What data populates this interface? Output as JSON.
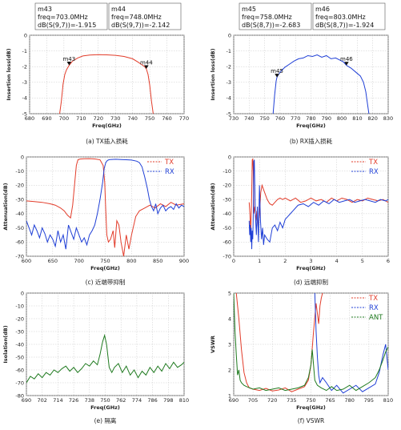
{
  "chart_data": [
    {
      "id": "a",
      "type": "line",
      "caption": "(a) TX插入损耗",
      "xlabel": "Freq(GHz)",
      "ylabel": "Insertion loss(dB)",
      "xlim": [
        680,
        770
      ],
      "ylim": [
        -5,
        0
      ],
      "xticks": [
        680,
        690,
        700,
        710,
        720,
        730,
        740,
        750,
        760,
        770
      ],
      "yticks": [
        0,
        -1,
        -2,
        -3,
        -4,
        -5
      ],
      "grid": true,
      "markers_box": [
        {
          "lines": [
            "m43",
            "freq=703.0MHz",
            "dB(S(9,7))=-1.915"
          ]
        },
        {
          "lines": [
            "m44",
            "freq=748.0MHz",
            "dB(S(9,7))=-2.142"
          ]
        }
      ],
      "markers": [
        {
          "name": "m43",
          "x": 703,
          "y": -1.915
        },
        {
          "name": "m44",
          "x": 748,
          "y": -2.142
        }
      ],
      "series": [
        {
          "color": "#e23c2a",
          "x": [
            697.5,
            698.5,
            699.5,
            700.5,
            701.5,
            703,
            705,
            708,
            711,
            715,
            720,
            725,
            730,
            735,
            740,
            743,
            745,
            747,
            748,
            749,
            750,
            751,
            752
          ],
          "y": [
            -5,
            -4.2,
            -3.1,
            -2.5,
            -2.2,
            -1.92,
            -1.65,
            -1.45,
            -1.32,
            -1.26,
            -1.24,
            -1.25,
            -1.28,
            -1.35,
            -1.5,
            -1.7,
            -1.85,
            -2.0,
            -2.14,
            -2.5,
            -3.2,
            -4.2,
            -5
          ]
        }
      ]
    },
    {
      "id": "b",
      "type": "line",
      "caption": "(b) RX插入损耗",
      "xlabel": "Freq(GHz)",
      "ylabel": "Insertion loss(dB)",
      "xlim": [
        730,
        830
      ],
      "ylim": [
        -5,
        0
      ],
      "xticks": [
        730,
        740,
        750,
        760,
        770,
        780,
        790,
        800,
        810,
        820,
        830
      ],
      "yticks": [
        0,
        -1,
        -2,
        -3,
        -4,
        -5
      ],
      "grid": true,
      "markers_box": [
        {
          "lines": [
            "m45",
            "freq=758.0MHz",
            "dB(S(8,7))=-2.683"
          ]
        },
        {
          "lines": [
            "m46",
            "freq=803.0MHz",
            "dB(S(8,7))=-1.924"
          ]
        }
      ],
      "markers": [
        {
          "name": "m45",
          "x": 758,
          "y": -2.683
        },
        {
          "name": "m46",
          "x": 803,
          "y": -1.924
        }
      ],
      "series": [
        {
          "color": "#1f3fd6",
          "x": [
            755.5,
            756.5,
            757.5,
            758,
            759,
            761,
            763,
            766,
            769,
            772,
            775,
            778,
            781,
            784,
            787,
            790,
            793,
            796,
            799,
            801,
            803,
            806,
            809,
            812,
            814,
            815.5,
            816.5,
            817.5
          ],
          "y": [
            -5,
            -3.8,
            -2.9,
            -2.68,
            -2.5,
            -2.25,
            -2.05,
            -1.85,
            -1.65,
            -1.5,
            -1.45,
            -1.3,
            -1.35,
            -1.25,
            -1.4,
            -1.3,
            -1.5,
            -1.45,
            -1.6,
            -1.7,
            -1.92,
            -2.1,
            -2.35,
            -2.6,
            -3.0,
            -3.6,
            -4.3,
            -5
          ]
        }
      ]
    },
    {
      "id": "c",
      "type": "line",
      "caption": "(c) 近端带抑制",
      "xlabel": "Freq(GHz)",
      "ylabel": "Attenuation(dB)",
      "xlim": [
        600,
        900
      ],
      "ylim": [
        -70,
        0
      ],
      "xticks": [
        600,
        650,
        700,
        750,
        800,
        850,
        900
      ],
      "yticks": [
        0,
        -10,
        -20,
        -30,
        -40,
        -50,
        -60,
        -70
      ],
      "grid": true,
      "legend": [
        {
          "name": "TX",
          "color": "#e23c2a"
        },
        {
          "name": "RX",
          "color": "#1f3fd6"
        }
      ],
      "legend_position": "top-right",
      "series": [
        {
          "name": "TX",
          "color": "#e23c2a",
          "x": [
            600,
            615,
            630,
            645,
            655,
            665,
            672,
            678,
            684,
            688,
            692,
            695,
            698,
            702,
            710,
            720,
            730,
            740,
            746,
            749,
            751,
            753,
            756,
            760,
            765,
            768,
            772,
            776,
            780,
            785,
            790,
            795,
            800,
            808,
            815,
            825,
            835,
            845,
            855,
            865,
            875,
            885,
            900
          ],
          "y": [
            -31,
            -31.5,
            -32,
            -33,
            -34,
            -36,
            -38,
            -41,
            -43,
            -34,
            -18,
            -6,
            -2,
            -1.5,
            -1.3,
            -1.2,
            -1.4,
            -2,
            -6,
            -18,
            -38,
            -55,
            -60,
            -58,
            -52,
            -64,
            -45,
            -48,
            -60,
            -70,
            -55,
            -65,
            -55,
            -42,
            -38,
            -36,
            -34,
            -36,
            -33,
            -35,
            -32,
            -34,
            -33
          ]
        },
        {
          "name": "RX",
          "color": "#1f3fd6",
          "x": [
            600,
            605,
            610,
            615,
            620,
            625,
            630,
            635,
            640,
            645,
            650,
            655,
            660,
            665,
            670,
            675,
            680,
            685,
            690,
            695,
            700,
            705,
            710,
            715,
            720,
            725,
            730,
            735,
            740,
            745,
            748,
            751,
            754,
            757,
            760,
            770,
            780,
            790,
            800,
            810,
            815,
            820,
            825,
            830,
            834,
            838,
            842,
            846,
            850,
            855,
            860,
            865,
            870,
            875,
            880,
            885,
            890,
            895,
            900
          ],
          "y": [
            -45,
            -50,
            -55,
            -48,
            -52,
            -57,
            -50,
            -54,
            -60,
            -55,
            -58,
            -63,
            -52,
            -60,
            -55,
            -65,
            -48,
            -53,
            -58,
            -50,
            -55,
            -60,
            -57,
            -62,
            -55,
            -52,
            -48,
            -40,
            -30,
            -18,
            -8,
            -4,
            -2.5,
            -2,
            -1.8,
            -1.6,
            -1.8,
            -2,
            -2.2,
            -3,
            -4,
            -7,
            -14,
            -22,
            -30,
            -35,
            -38,
            -33,
            -40,
            -36,
            -34,
            -38,
            -36,
            -35,
            -37,
            -33,
            -36,
            -34,
            -35
          ]
        }
      ]
    },
    {
      "id": "d",
      "type": "line",
      "caption": "(d) 远端抑制",
      "xlabel": "Freq(GHz)",
      "ylabel": "Attenuation(dB)",
      "xlim": [
        0,
        6
      ],
      "ylim": [
        -70,
        0
      ],
      "xticks": [
        0,
        1,
        2,
        3,
        4,
        5,
        6
      ],
      "yticks": [
        0,
        -10,
        -20,
        -30,
        -40,
        -50,
        -60,
        -70
      ],
      "grid": true,
      "legend": [
        {
          "name": "TX",
          "color": "#e23c2a"
        },
        {
          "name": "RX",
          "color": "#1f3fd6"
        }
      ],
      "legend_position": "top-right",
      "series": [
        {
          "name": "TX",
          "color": "#e23c2a",
          "x": [
            0.6,
            0.63,
            0.66,
            0.7,
            0.72,
            0.74,
            0.76,
            0.78,
            0.82,
            0.86,
            0.9,
            0.95,
            1.0,
            1.05,
            1.1,
            1.2,
            1.3,
            1.4,
            1.5,
            1.6,
            1.7,
            1.8,
            1.9,
            2.0,
            2.2,
            2.4,
            2.6,
            2.8,
            3.0,
            3.2,
            3.4,
            3.6,
            3.8,
            4.0,
            4.2,
            4.4,
            4.6,
            4.8,
            5.0,
            5.2,
            5.4,
            5.6,
            5.8,
            6.0
          ],
          "y": [
            -32,
            -40,
            -55,
            -25,
            -2,
            -1.5,
            -10,
            -40,
            -35,
            -45,
            -38,
            -50,
            -40,
            -25,
            -20,
            -25,
            -30,
            -33,
            -34,
            -32,
            -30,
            -29,
            -30,
            -29,
            -31,
            -29,
            -32,
            -31,
            -29,
            -31,
            -30,
            -32,
            -29,
            -31,
            -29,
            -30,
            -32,
            -30,
            -31,
            -29,
            -30,
            -31,
            -30,
            -32
          ]
        },
        {
          "name": "RX",
          "color": "#1f3fd6",
          "x": [
            0.6,
            0.62,
            0.64,
            0.66,
            0.68,
            0.7,
            0.72,
            0.74,
            0.76,
            0.78,
            0.8,
            0.84,
            0.88,
            0.92,
            0.96,
            1.0,
            1.04,
            1.08,
            1.12,
            1.16,
            1.2,
            1.3,
            1.4,
            1.5,
            1.6,
            1.7,
            1.8,
            1.9,
            2.0,
            2.1,
            2.2,
            2.3,
            2.4,
            2.5,
            2.7,
            2.9,
            3.1,
            3.3,
            3.5,
            3.7,
            3.9,
            4.1,
            4.3,
            4.5,
            4.7,
            4.9,
            5.1,
            5.3,
            5.5,
            5.7,
            5.9,
            6.0
          ],
          "y": [
            -45,
            -55,
            -48,
            -60,
            -50,
            -65,
            -52,
            -58,
            -40,
            -3,
            -2,
            -40,
            -55,
            -35,
            -60,
            -20,
            -45,
            -58,
            -50,
            -62,
            -55,
            -58,
            -60,
            -50,
            -48,
            -52,
            -46,
            -50,
            -44,
            -42,
            -40,
            -38,
            -36,
            -34,
            -33,
            -35,
            -32,
            -34,
            -31,
            -33,
            -30,
            -32,
            -31,
            -30,
            -32,
            -31,
            -30,
            -31,
            -32,
            -30,
            -31,
            -30
          ]
        }
      ]
    },
    {
      "id": "e",
      "type": "line",
      "caption": "(e) 隔离",
      "xlabel": "Freq(GHz)",
      "ylabel": "Isolation(dB)",
      "xlim": [
        690,
        810
      ],
      "ylim": [
        -80,
        0
      ],
      "xticks": [
        690,
        702,
        714,
        726,
        738,
        750,
        762,
        774,
        786,
        798,
        810
      ],
      "yticks": [
        0,
        -10,
        -20,
        -30,
        -40,
        -50,
        -60,
        -70,
        -80
      ],
      "grid": true,
      "series": [
        {
          "color": "#1f7a1f",
          "x": [
            690,
            693,
            696,
            699,
            702,
            705,
            708,
            711,
            714,
            717,
            720,
            723,
            726,
            729,
            732,
            735,
            738,
            741,
            744,
            746,
            748,
            749.5,
            751,
            753,
            755,
            757,
            760,
            763,
            766,
            769,
            772,
            775,
            778,
            781,
            784,
            787,
            790,
            793,
            796,
            799,
            802,
            805,
            808,
            810
          ],
          "y": [
            -70,
            -65,
            -67,
            -63,
            -66,
            -62,
            -64,
            -60,
            -62,
            -59,
            -57,
            -61,
            -58,
            -62,
            -59,
            -55,
            -57,
            -53,
            -56,
            -48,
            -38,
            -33,
            -40,
            -58,
            -62,
            -58,
            -55,
            -62,
            -57,
            -64,
            -60,
            -66,
            -61,
            -64,
            -58,
            -62,
            -57,
            -61,
            -55,
            -59,
            -54,
            -58,
            -56,
            -54
          ]
        }
      ]
    },
    {
      "id": "f",
      "type": "line",
      "caption": "(f) VSWR",
      "xlabel": "Freq(GHz)",
      "ylabel": "VSWR",
      "xlim": [
        690,
        810
      ],
      "ylim": [
        1,
        5
      ],
      "xticks": [
        690,
        705,
        720,
        735,
        750,
        765,
        780,
        795,
        810
      ],
      "yticks": [
        5,
        4,
        3,
        2,
        1
      ],
      "grid": true,
      "legend": [
        {
          "name": "TX",
          "color": "#e23c2a"
        },
        {
          "name": "RX",
          "color": "#1f3fd6"
        },
        {
          "name": "ANT",
          "color": "#1f7a1f"
        }
      ],
      "legend_position": "top-right",
      "series": [
        {
          "name": "TX",
          "color": "#e23c2a",
          "x": [
            692,
            694,
            696,
            698,
            700,
            702,
            705,
            710,
            715,
            720,
            725,
            730,
            735,
            740,
            745,
            748,
            750,
            752,
            754,
            756,
            757,
            758,
            759
          ],
          "y": [
            5,
            4.0,
            2.8,
            1.9,
            1.5,
            1.3,
            1.25,
            1.2,
            1.28,
            1.18,
            1.22,
            1.3,
            1.15,
            1.25,
            1.35,
            1.6,
            2.2,
            3.5,
            4.6,
            3.8,
            4.5,
            4.8,
            5
          ]
        },
        {
          "name": "RX",
          "color": "#1f3fd6",
          "x": [
            753,
            754,
            755,
            756,
            757,
            759,
            762,
            766,
            770,
            775,
            780,
            785,
            790,
            795,
            800,
            803,
            806,
            808,
            810
          ],
          "y": [
            5,
            3.5,
            2.5,
            1.8,
            1.5,
            1.7,
            1.5,
            1.2,
            1.4,
            1.1,
            1.25,
            1.4,
            1.15,
            1.3,
            1.45,
            1.9,
            2.6,
            3.0,
            2.0
          ]
        },
        {
          "name": "ANT",
          "color": "#1f7a1f",
          "x": [
            690,
            691,
            692,
            693,
            694,
            695,
            696,
            698,
            700,
            705,
            710,
            715,
            720,
            725,
            730,
            735,
            740,
            745,
            748,
            750,
            751,
            752,
            753,
            755,
            758,
            762,
            766,
            770,
            775,
            780,
            785,
            790,
            795,
            800,
            803,
            806,
            808,
            810
          ],
          "y": [
            5,
            3.5,
            2.6,
            1.8,
            2.0,
            1.6,
            1.5,
            1.4,
            1.35,
            1.25,
            1.3,
            1.2,
            1.25,
            1.3,
            1.2,
            1.25,
            1.3,
            1.4,
            1.7,
            2.2,
            2.8,
            2.2,
            1.6,
            1.4,
            1.3,
            1.2,
            1.35,
            1.2,
            1.25,
            1.4,
            1.2,
            1.35,
            1.5,
            1.7,
            2.0,
            2.4,
            2.7,
            2.9
          ]
        }
      ]
    }
  ]
}
